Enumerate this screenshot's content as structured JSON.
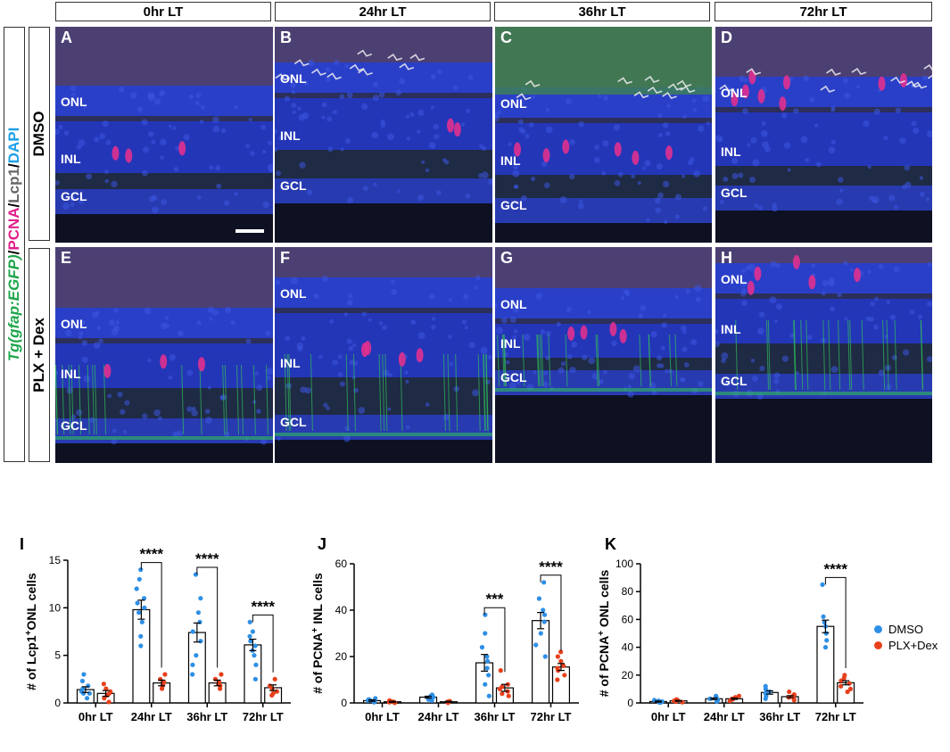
{
  "columns": [
    "0hr LT",
    "24hr LT",
    "36hr LT",
    "72hr LT"
  ],
  "rows": [
    {
      "label": "DMSO",
      "panels": [
        "A",
        "B",
        "C",
        "D"
      ]
    },
    {
      "label": "PLX + Dex",
      "panels": [
        "E",
        "F",
        "G",
        "H"
      ]
    }
  ],
  "stain_label": {
    "part1": "Tg(gfap:EGFP)",
    "sep1": "/",
    "part2": "PCNA",
    "sep2": "/",
    "part3": "Lcp1",
    "sep3": "/",
    "part4": "DAPI"
  },
  "colors": {
    "green": "#1fa64a",
    "magenta": "#e0208a",
    "gray": "#666666",
    "cyan": "#1ea0e6",
    "dmso": "#2e8fe6",
    "plx": "#e8401c"
  },
  "layer_labels": [
    [
      "ONL",
      "INL",
      "GCL"
    ],
    [
      "ONL",
      "INL",
      "GCL"
    ],
    [
      "ONL",
      "INL",
      "GCL"
    ],
    [
      "ONL",
      "INL",
      "GCL"
    ],
    [
      "ONL",
      "INL",
      "GCL"
    ],
    [
      "ONL",
      "INL",
      "GCL"
    ],
    [
      "ONL",
      "INL",
      "GCL"
    ],
    [
      "ONL",
      "INL",
      "GCL"
    ]
  ],
  "legend": [
    {
      "label": "DMSO",
      "color": "#2e8fe6"
    },
    {
      "label": "PLX+Dex",
      "color": "#e8401c"
    }
  ],
  "chart_data": [
    {
      "letter": "I",
      "type": "bar",
      "ylabel_pre": "# of Lcp1",
      "ylabel_sup": "+",
      "ylabel_post": "ONL cells",
      "ylim": [
        0,
        15
      ],
      "yticks": [
        0,
        5,
        10,
        15
      ],
      "categories": [
        "0hr LT",
        "24hr LT",
        "36hr LT",
        "72hr LT"
      ],
      "series": [
        {
          "name": "DMSO",
          "values": [
            1.4,
            9.8,
            7.4,
            6.1
          ],
          "errors": [
            0.3,
            1.0,
            1.0,
            0.6
          ],
          "points": [
            [
              0.5,
              1,
              1,
              1.2,
              1.5,
              1.8,
              2.3,
              3
            ],
            [
              6,
              7,
              8.5,
              9.5,
              10,
              10.5,
              11,
              12,
              13,
              14
            ],
            [
              3,
              4,
              5,
              6.5,
              7.5,
              8.5,
              9.5,
              11,
              13.5
            ],
            [
              2.5,
              4,
              5,
              5.5,
              6,
              6.5,
              7,
              7.5,
              8.5
            ]
          ]
        },
        {
          "name": "PLX+Dex",
          "values": [
            1.0,
            2.1,
            2.1,
            1.6
          ],
          "errors": [
            0.3,
            0.3,
            0.3,
            0.3
          ],
          "points": [
            [
              0.1,
              0.5,
              0.8,
              1,
              1.2,
              1.5,
              2
            ],
            [
              1.5,
              1.8,
              2,
              2.2,
              2.5,
              3
            ],
            [
              1.5,
              1.8,
              2,
              2.2,
              2.5,
              3
            ],
            [
              0.8,
              1,
              1.2,
              1.5,
              1.8,
              2.5
            ]
          ]
        }
      ],
      "significance": [
        "",
        "****",
        "****",
        "****"
      ]
    },
    {
      "letter": "J",
      "type": "bar",
      "ylabel_pre": "# of PCNA",
      "ylabel_sup": "+",
      "ylabel_post": " INL cells",
      "ylim": [
        0,
        60
      ],
      "yticks": [
        0,
        20,
        40,
        60
      ],
      "categories": [
        "0hr LT",
        "24hr LT",
        "36hr LT",
        "72hr LT"
      ],
      "series": [
        {
          "name": "DMSO",
          "values": [
            1.0,
            2.5,
            17.3,
            35.5
          ],
          "errors": [
            0.3,
            0.4,
            3.6,
            3.5
          ],
          "points": [
            [
              0.3,
              0.5,
              1,
              1.2,
              1.5,
              2
            ],
            [
              1,
              1.5,
              2,
              2.5,
              3,
              3.5
            ],
            [
              3,
              8,
              12,
              15,
              18,
              20,
              24,
              30,
              38
            ],
            [
              20,
              25,
              30,
              35,
              38,
              40,
              45,
              52
            ]
          ]
        },
        {
          "name": "PLX+Dex",
          "values": [
            0.5,
            0.5,
            6.5,
            15.5
          ],
          "errors": [
            0.2,
            0.2,
            1.5,
            1.5
          ],
          "points": [
            [
              0.1,
              0.3,
              0.5,
              0.8,
              1
            ],
            [
              0.1,
              0.3,
              0.5,
              0.8
            ],
            [
              3,
              4,
              5,
              6,
              7,
              8,
              14
            ],
            [
              10,
              12,
              14,
              15,
              16,
              18,
              20,
              22
            ]
          ]
        }
      ],
      "significance": [
        "",
        "",
        "***",
        "****"
      ]
    },
    {
      "letter": "K",
      "type": "bar",
      "ylabel_pre": "# of PCNA",
      "ylabel_sup": "+",
      "ylabel_post": " ONL cells",
      "ylim": [
        0,
        100
      ],
      "yticks": [
        0,
        20,
        40,
        60,
        80,
        100
      ],
      "categories": [
        "0hr LT",
        "24hr LT",
        "36hr LT",
        "72hr LT"
      ],
      "series": [
        {
          "name": "DMSO",
          "values": [
            1.0,
            3.0,
            7.5,
            55.0
          ],
          "errors": [
            0.4,
            0.6,
            1.2,
            4.5
          ],
          "points": [
            [
              0.3,
              0.5,
              1,
              1.5,
              2
            ],
            [
              1,
              2,
              3,
              4,
              5
            ],
            [
              3,
              5,
              7,
              8,
              10,
              12
            ],
            [
              40,
              45,
              50,
              55,
              58,
              62,
              85
            ]
          ]
        },
        {
          "name": "PLX+Dex",
          "values": [
            1.5,
            3.0,
            4.5,
            14.5
          ],
          "errors": [
            0.3,
            0.5,
            0.7,
            1.5
          ],
          "points": [
            [
              0.5,
              1,
              1.5,
              2,
              2.5
            ],
            [
              1.5,
              2.5,
              3,
              4,
              5
            ],
            [
              2,
              3,
              4,
              5,
              6,
              8
            ],
            [
              8,
              10,
              12,
              14,
              16,
              18,
              20
            ]
          ]
        }
      ],
      "significance": [
        "",
        "",
        "",
        "****"
      ]
    }
  ]
}
